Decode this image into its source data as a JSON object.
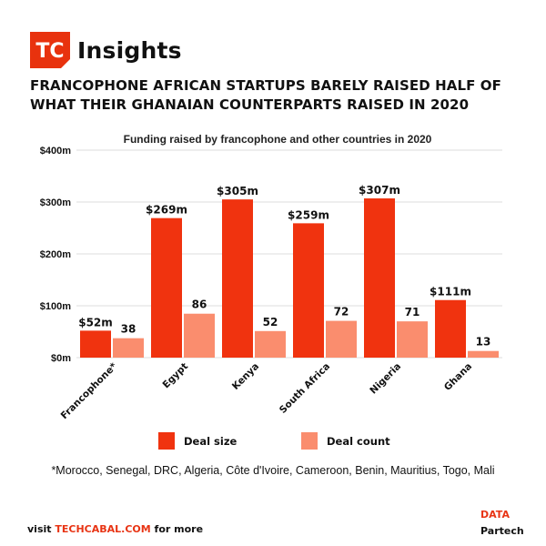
{
  "brand": {
    "logo_text": "TC",
    "name": "Insights",
    "accent_color": "#e8320e"
  },
  "headline": "FRANCOPHONE AFRICAN STARTUPS BARELY RAISED HALF OF WHAT THEIR GHANAIAN COUNTERPARTS RAISED IN 2020",
  "chart_data": {
    "type": "bar",
    "title": "Funding raised by francophone and other countries in 2020",
    "categories": [
      "Francophone*",
      "Egypt",
      "Kenya",
      "South Africa",
      "Nigeria",
      "Ghana"
    ],
    "series": [
      {
        "name": "Deal size",
        "axis": "left",
        "color": "#f0330f",
        "values": [
          52,
          269,
          305,
          259,
          307,
          111
        ],
        "value_labels": [
          "$52m",
          "$269m",
          "$305m",
          "$259m",
          "$307m",
          "$111m"
        ]
      },
      {
        "name": "Deal count",
        "axis": "right",
        "color": "#fa8d6e",
        "values": [
          38,
          86,
          52,
          72,
          71,
          13
        ],
        "value_labels": [
          "38",
          "86",
          "52",
          "72",
          "71",
          "13"
        ]
      }
    ],
    "y_ticks": [
      "$0m",
      "$100m",
      "$200m",
      "$300m",
      "$400m"
    ],
    "ylim": [
      0,
      400
    ],
    "grid": true,
    "legend_position": "bottom"
  },
  "footnote": "*Morocco, Senegal, DRC, Algeria, Côte d'Ivoire, Cameroon, Benin, Mauritius, Togo, Mali",
  "footer": {
    "prefix": "visit ",
    "link": "TECHCABAL.COM",
    "suffix": " for more"
  },
  "source": {
    "label": "DATA",
    "name": "Partech"
  }
}
